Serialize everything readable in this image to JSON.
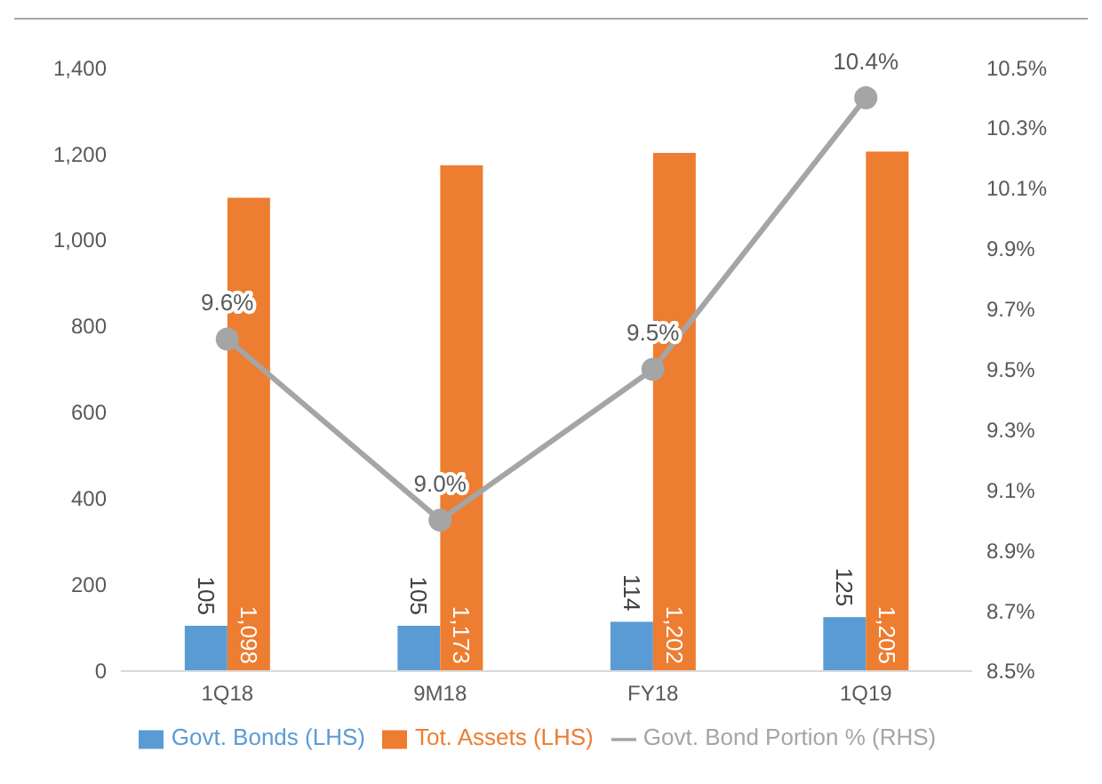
{
  "chart_data": {
    "type": "bar",
    "categories": [
      "1Q18",
      "9M18",
      "FY18",
      "1Q19"
    ],
    "series": [
      {
        "name": "Govt. Bonds (LHS)",
        "color": "#5b9bd5",
        "values": [
          105,
          105,
          114,
          125
        ],
        "value_labels": [
          "105",
          "105",
          "114",
          "125"
        ]
      },
      {
        "name": "Tot. Assets (LHS)",
        "color": "#ed7d31",
        "values": [
          1098,
          1173,
          1202,
          1205
        ],
        "value_labels": [
          "1,098",
          "1,173",
          "1,202",
          "1,205"
        ]
      },
      {
        "name": "Govt. Bond Portion % (RHS)",
        "type": "line",
        "axis": "y2",
        "color": "#a5a5a5",
        "values": [
          9.6,
          9.0,
          9.5,
          10.4
        ],
        "value_labels": [
          "9.6%",
          "9.0%",
          "9.5%",
          "10.4%"
        ]
      }
    ],
    "ylim": [
      0,
      1400
    ],
    "yticks": [
      {
        "value": 0,
        "label": "0"
      },
      {
        "value": 200,
        "label": "200"
      },
      {
        "value": 400,
        "label": "400"
      },
      {
        "value": 600,
        "label": "600"
      },
      {
        "value": 800,
        "label": "800"
      },
      {
        "value": 1000,
        "label": "1,000"
      },
      {
        "value": 1200,
        "label": "1,200"
      },
      {
        "value": 1400,
        "label": "1,400"
      }
    ],
    "y2lim": [
      8.5,
      10.5
    ],
    "y2ticks": [
      {
        "value": 8.5,
        "label": "8.5%"
      },
      {
        "value": 8.7,
        "label": "8.7%"
      },
      {
        "value": 8.9,
        "label": "8.9%"
      },
      {
        "value": 9.1,
        "label": "9.1%"
      },
      {
        "value": 9.3,
        "label": "9.3%"
      },
      {
        "value": 9.5,
        "label": "9.5%"
      },
      {
        "value": 9.7,
        "label": "9.7%"
      },
      {
        "value": 9.9,
        "label": "9.9%"
      },
      {
        "value": 10.1,
        "label": "10.1%"
      },
      {
        "value": 10.3,
        "label": "10.3%"
      },
      {
        "value": 10.5,
        "label": "10.5%"
      }
    ],
    "data_labels": true,
    "grid": false,
    "legend": "bottom",
    "marker": "circle",
    "line_style": "solid"
  }
}
